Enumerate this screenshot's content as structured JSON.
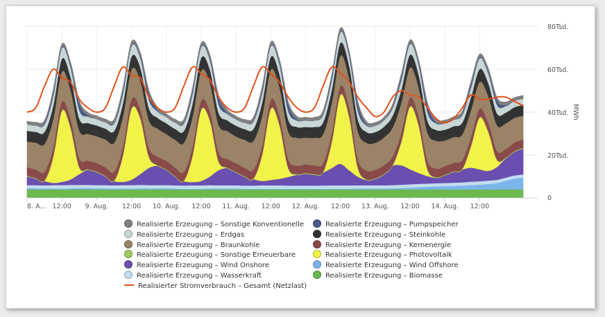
{
  "chart_data": {
    "type": "area",
    "stacked": true,
    "ylabel": "MWh",
    "ylim": [
      0,
      80000
    ],
    "y_ticks": [
      0,
      20000,
      40000,
      60000,
      80000
    ],
    "y_tick_labels": [
      "0",
      "20Tsd.",
      "40Tsd.",
      "60Tsd.",
      "80Tsd."
    ],
    "x_hours": [
      0,
      3,
      6,
      9,
      12,
      15,
      18,
      21,
      24,
      27,
      30,
      33,
      36,
      39,
      42,
      45,
      48,
      51,
      54,
      57,
      60,
      63,
      66,
      69,
      72,
      75,
      78,
      81,
      84,
      87,
      90,
      93,
      96,
      99,
      102,
      105,
      108,
      111,
      114,
      117,
      120,
      123,
      126,
      129,
      132,
      135,
      138,
      141,
      144,
      147,
      150,
      153,
      156,
      159,
      162,
      165,
      168,
      171
    ],
    "x_tick_hours": [
      0,
      12,
      24,
      36,
      48,
      60,
      72,
      84,
      96,
      108,
      120,
      132,
      144,
      156
    ],
    "x_tick_labels": [
      "8. A...",
      "12:00",
      "9. Aug.",
      "12:00",
      "10. Aug.",
      "12:00",
      "11. Aug.",
      "12:00",
      "12. Aug.",
      "12:00",
      "13. Aug.",
      "12:00",
      "14. Aug.",
      "12:00"
    ],
    "legend_position": "bottom",
    "series": [
      {
        "name": "Realisierte Erzeugung – Biomasse",
        "color": "#6db84f",
        "values": [
          4000,
          4000,
          4000,
          4000,
          4000,
          4000,
          4000,
          4000,
          4000,
          4000,
          4000,
          4000,
          4000,
          4000,
          4000,
          4000,
          4000,
          4000,
          4000,
          4000,
          4000,
          4000,
          4000,
          4000,
          4000,
          4000,
          4000,
          4000,
          4000,
          4000,
          4000,
          4000,
          4000,
          4000,
          4000,
          4000,
          4000,
          4000,
          4000,
          4000,
          4000,
          4000,
          4000,
          4000,
          4000,
          4000,
          4000,
          4000,
          4000,
          4000,
          4000,
          4000,
          4000,
          4000,
          4000,
          4000,
          4000,
          4000
        ]
      },
      {
        "name": "Realisierte Erzeugung – Wind Offshore",
        "color": "#7cb5ec",
        "values": [
          500,
          500,
          400,
          400,
          400,
          500,
          600,
          600,
          500,
          500,
          400,
          400,
          400,
          500,
          500,
          500,
          500,
          400,
          300,
          300,
          300,
          400,
          400,
          400,
          400,
          300,
          300,
          300,
          300,
          300,
          300,
          300,
          300,
          300,
          300,
          300,
          300,
          300,
          400,
          400,
          400,
          400,
          500,
          600,
          800,
          1000,
          1200,
          1400,
          1500,
          1600,
          1800,
          2000,
          2200,
          2500,
          3000,
          4000,
          5000,
          5500
        ]
      },
      {
        "name": "Realisierte Erzeugung – Wasserkraft",
        "color": "#c3dcf0",
        "values": [
          1500,
          1500,
          1500,
          1600,
          1600,
          1600,
          1500,
          1500,
          1500,
          1500,
          1500,
          1600,
          1600,
          1600,
          1500,
          1500,
          1500,
          1500,
          1500,
          1600,
          1600,
          1600,
          1500,
          1500,
          1500,
          1500,
          1500,
          1600,
          1600,
          1600,
          1500,
          1500,
          1500,
          1500,
          1500,
          1600,
          1600,
          1600,
          1500,
          1500,
          1500,
          1500,
          1500,
          1600,
          1600,
          1600,
          1500,
          1500,
          1500,
          1500,
          1500,
          1600,
          1600,
          1600,
          1500,
          1500,
          1500,
          1500
        ]
      },
      {
        "name": "Realisierte Erzeugung – Wind Onshore",
        "color": "#6a4fb0",
        "values": [
          4000,
          3000,
          2000,
          1000,
          1500,
          2500,
          5000,
          7000,
          6000,
          4000,
          2000,
          1500,
          2500,
          5000,
          8000,
          9000,
          7000,
          4000,
          2000,
          1500,
          2000,
          4000,
          7000,
          8000,
          6000,
          4000,
          3000,
          2000,
          2500,
          3000,
          4000,
          5000,
          5500,
          5000,
          6000,
          8000,
          10000,
          7000,
          4000,
          2500,
          3000,
          5000,
          9000,
          9000,
          7000,
          5000,
          3500,
          2500,
          3500,
          5000,
          6000,
          6500,
          5500,
          4500,
          6000,
          9000,
          11000,
          12000
        ]
      },
      {
        "name": "Realisierte Erzeugung – Photovoltaik",
        "color": "#f2f34a",
        "values": [
          0,
          0,
          0,
          12000,
          33000,
          24000,
          3000,
          0,
          0,
          0,
          0,
          12000,
          33000,
          26000,
          5000,
          0,
          0,
          0,
          0,
          12000,
          33000,
          26000,
          4000,
          0,
          0,
          0,
          0,
          12000,
          33000,
          25000,
          4000,
          0,
          0,
          0,
          0,
          12000,
          32000,
          25000,
          4000,
          0,
          0,
          0,
          0,
          11000,
          29000,
          22000,
          3000,
          0,
          0,
          0,
          0,
          10000,
          24000,
          18000,
          3000,
          0,
          0,
          0
        ]
      },
      {
        "name": "Realisierte Erzeugung – Sonstige Erneuerbare",
        "color": "#9ccc5e",
        "values": [
          300,
          300,
          300,
          300,
          300,
          300,
          300,
          300,
          300,
          300,
          300,
          300,
          300,
          300,
          300,
          300,
          300,
          300,
          300,
          300,
          300,
          300,
          300,
          300,
          300,
          300,
          300,
          300,
          300,
          300,
          300,
          300,
          300,
          300,
          300,
          300,
          300,
          300,
          300,
          300,
          300,
          300,
          300,
          300,
          300,
          300,
          300,
          300,
          300,
          300,
          300,
          300,
          300,
          300,
          300,
          300,
          300,
          300
        ]
      },
      {
        "name": "Realisierte Erzeugung – Kernenergie",
        "color": "#8b4a4a",
        "values": [
          4000,
          4000,
          4000,
          4000,
          4000,
          4000,
          4000,
          4000,
          4000,
          4000,
          4000,
          4000,
          4000,
          4000,
          4000,
          4000,
          4000,
          4000,
          4000,
          4000,
          4000,
          4000,
          4000,
          4000,
          4000,
          4000,
          4000,
          4000,
          4000,
          4000,
          4000,
          4000,
          4000,
          4000,
          4000,
          4000,
          4000,
          4000,
          4000,
          4000,
          4000,
          4000,
          4000,
          4000,
          4000,
          4000,
          4000,
          4000,
          4000,
          4000,
          4000,
          4000,
          4000,
          4000,
          4000,
          4000,
          4000,
          4000
        ]
      },
      {
        "name": "Realisierte Erzeugung – Braunkohle",
        "color": "#9a8366",
        "values": [
          12000,
          12500,
          13000,
          13500,
          14000,
          13500,
          13000,
          12500,
          12500,
          13000,
          13500,
          14000,
          14000,
          13500,
          13000,
          13000,
          12500,
          13000,
          13500,
          14000,
          14000,
          13500,
          13000,
          13000,
          12500,
          13000,
          13500,
          14000,
          14000,
          13500,
          13000,
          13000,
          12500,
          13000,
          13500,
          14000,
          14000,
          13500,
          13000,
          13000,
          12500,
          13000,
          13500,
          14000,
          14000,
          13500,
          13000,
          13000,
          12000,
          12000,
          12000,
          12500,
          12500,
          12500,
          12000,
          12000,
          11500,
          11000
        ]
      },
      {
        "name": "Realisierte Erzeugung – Steinkohle",
        "color": "#333333",
        "values": [
          5000,
          5000,
          5500,
          6000,
          6000,
          6000,
          5500,
          5000,
          5000,
          5000,
          5500,
          6000,
          6000,
          6000,
          5500,
          5000,
          5000,
          5000,
          5500,
          6000,
          6000,
          6000,
          5500,
          5000,
          5000,
          5000,
          5500,
          6000,
          6000,
          6000,
          5500,
          5000,
          5000,
          5000,
          5500,
          6000,
          6000,
          6000,
          5500,
          5000,
          5000,
          5000,
          5500,
          6000,
          6000,
          6000,
          5500,
          5000,
          5000,
          5000,
          5500,
          6000,
          6000,
          6000,
          5500,
          5000,
          5000,
          5000
        ]
      },
      {
        "name": "Realisierte Erzeugung – Erdgas",
        "color": "#c8d6d6",
        "values": [
          3000,
          3000,
          3500,
          4500,
          5000,
          4500,
          4000,
          3000,
          3000,
          3000,
          3500,
          4500,
          5000,
          4500,
          4000,
          3000,
          3000,
          3000,
          3500,
          4500,
          5000,
          4500,
          4000,
          3000,
          3000,
          3000,
          3500,
          4500,
          5000,
          4500,
          4000,
          3000,
          3000,
          3000,
          3500,
          4500,
          5000,
          4500,
          4000,
          3000,
          3000,
          3000,
          3500,
          4500,
          5000,
          4500,
          4000,
          3000,
          3000,
          3000,
          3500,
          4500,
          5000,
          4500,
          4000,
          3000,
          3000,
          3000
        ]
      },
      {
        "name": "Realisierte Erzeugung – Pumpspeicher",
        "color": "#4a5a8a",
        "values": [
          0,
          0,
          500,
          1500,
          500,
          1000,
          3000,
          500,
          0,
          0,
          500,
          1500,
          500,
          1000,
          3000,
          500,
          0,
          0,
          500,
          1500,
          500,
          1000,
          3000,
          500,
          0,
          0,
          500,
          1500,
          500,
          1000,
          3000,
          500,
          0,
          0,
          500,
          1500,
          500,
          1000,
          3000,
          500,
          0,
          0,
          500,
          1500,
          500,
          1000,
          3000,
          500,
          0,
          0,
          500,
          1500,
          500,
          1000,
          2000,
          500,
          0,
          0
        ]
      },
      {
        "name": "Realisierte Erzeugung – Sonstige Konventionelle",
        "color": "#808080",
        "values": [
          1500,
          1500,
          1500,
          1500,
          1500,
          1500,
          1500,
          1500,
          1500,
          1500,
          1500,
          1500,
          1500,
          1500,
          1500,
          1500,
          1500,
          1500,
          1500,
          1500,
          1500,
          1500,
          1500,
          1500,
          1500,
          1500,
          1500,
          1500,
          1500,
          1500,
          1500,
          1500,
          1500,
          1500,
          1500,
          1500,
          1500,
          1500,
          1500,
          1500,
          1500,
          1500,
          1500,
          1500,
          1500,
          1500,
          1500,
          1500,
          1500,
          1500,
          1500,
          1500,
          1500,
          1500,
          1500,
          1500,
          1500,
          1500
        ]
      }
    ],
    "line_series": {
      "name": "Realisierter Stromverbrauch – Gesamt (Netzlast)",
      "color": "#e0521c",
      "values": [
        40000,
        42000,
        52000,
        60000,
        56000,
        54000,
        46000,
        42000,
        40000,
        42000,
        52000,
        61000,
        57000,
        56000,
        47000,
        42000,
        40000,
        42000,
        52000,
        61000,
        58000,
        55000,
        47000,
        42000,
        40000,
        42000,
        52000,
        61000,
        58000,
        54000,
        47000,
        42000,
        40000,
        42000,
        52000,
        61000,
        58000,
        54000,
        47000,
        42000,
        38000,
        40000,
        47000,
        50000,
        48000,
        47000,
        42000,
        37000,
        35000,
        37000,
        42000,
        48000,
        46000,
        46000,
        47000,
        47000,
        45000,
        43000
      ]
    }
  },
  "legend": {
    "left": [
      {
        "label": "Realisierte Erzeugung – Sonstige Konventionelle",
        "color": "#808080",
        "kind": "dot"
      },
      {
        "label": "Realisierte Erzeugung – Erdgas",
        "color": "#c8d6d6",
        "kind": "dot"
      },
      {
        "label": "Realisierte Erzeugung – Braunkohle",
        "color": "#9a8366",
        "kind": "dot"
      },
      {
        "label": "Realisierte Erzeugung – Sonstige Erneuerbare",
        "color": "#9ccc5e",
        "kind": "dot"
      },
      {
        "label": "Realisierte Erzeugung – Wind Onshore",
        "color": "#6a4fb0",
        "kind": "dot"
      },
      {
        "label": "Realisierte Erzeugung – Wasserkraft",
        "color": "#c3dcf0",
        "kind": "dot"
      },
      {
        "label": "Realisierter Stromverbrauch – Gesamt (Netzlast)",
        "color": "#e0521c",
        "kind": "line"
      }
    ],
    "right": [
      {
        "label": "Realisierte Erzeugung – Pumpspeicher",
        "color": "#4a5a8a",
        "kind": "dot"
      },
      {
        "label": "Realisierte Erzeugung – Steinkohle",
        "color": "#333333",
        "kind": "dot"
      },
      {
        "label": "Realisierte Erzeugung – Kernenergie",
        "color": "#8b4a4a",
        "kind": "dot"
      },
      {
        "label": "Realisierte Erzeugung – Photovoltaik",
        "color": "#f2f34a",
        "kind": "dot"
      },
      {
        "label": "Realisierte Erzeugung – Wind Offshore",
        "color": "#7cb5ec",
        "kind": "dot"
      },
      {
        "label": "Realisierte Erzeugung – Biomasse",
        "color": "#6db84f",
        "kind": "dot"
      }
    ]
  }
}
